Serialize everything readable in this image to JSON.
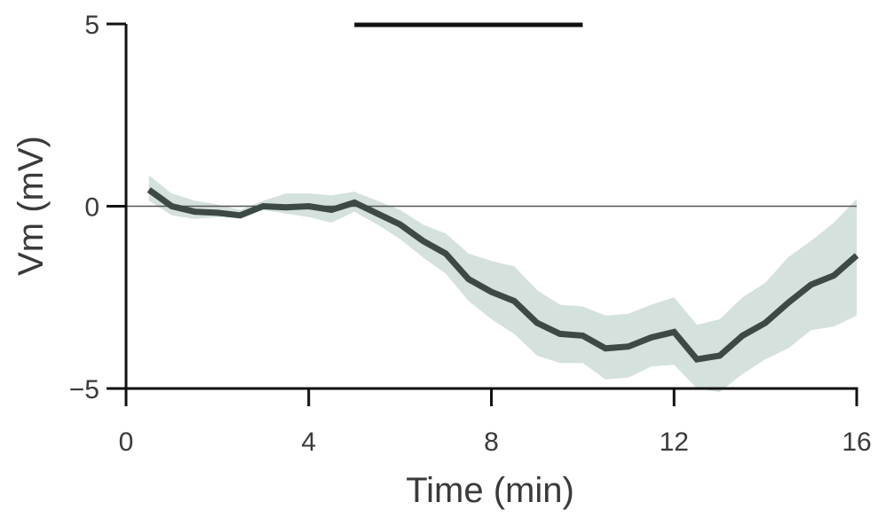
{
  "chart_data": {
    "type": "line",
    "xlabel": "Time (min)",
    "ylabel": "Vm (mV)",
    "xlim": [
      0,
      16
    ],
    "ylim": [
      -5,
      5
    ],
    "xticks": [
      0,
      4,
      8,
      12,
      16
    ],
    "xtick_labels": [
      "0",
      "4",
      "8",
      "12",
      "16"
    ],
    "yticks": [
      5,
      0,
      -5
    ],
    "ytick_labels": [
      "5",
      "0",
      "−5"
    ],
    "reference_line_y": 0,
    "stimulus_bar": {
      "x": [
        5,
        10
      ],
      "y": 5
    },
    "grid": false,
    "series": [
      {
        "x": [
          0.5,
          1.0,
          1.5,
          2.0,
          2.5,
          3.0,
          3.5,
          4.0,
          4.5,
          5.0,
          5.5,
          6.0,
          6.5,
          7.0,
          7.5,
          8.0,
          8.5,
          9.0,
          9.5,
          10.0,
          10.5,
          11.0,
          11.5,
          12.0,
          12.5,
          13.0,
          13.5,
          14.0,
          14.5,
          15.0,
          15.5,
          16.0
        ],
        "y": [
          0.45,
          0.0,
          -0.15,
          -0.18,
          -0.25,
          0.0,
          -0.03,
          0.0,
          -0.1,
          0.1,
          -0.2,
          -0.5,
          -0.95,
          -1.3,
          -2.0,
          -2.35,
          -2.6,
          -3.2,
          -3.5,
          -3.55,
          -3.9,
          -3.85,
          -3.6,
          -3.45,
          -4.2,
          -4.1,
          -3.55,
          -3.2,
          -2.65,
          -2.15,
          -1.9,
          -1.35
        ],
        "lower": [
          0.15,
          -0.25,
          -0.35,
          -0.3,
          -0.3,
          -0.1,
          -0.2,
          -0.3,
          -0.45,
          -0.15,
          -0.5,
          -0.9,
          -1.4,
          -1.85,
          -2.6,
          -3.1,
          -3.5,
          -4.1,
          -4.3,
          -4.3,
          -4.75,
          -4.7,
          -4.4,
          -4.35,
          -5.0,
          -5.1,
          -4.6,
          -4.2,
          -3.9,
          -3.4,
          -3.3,
          -3.0
        ],
        "upper": [
          0.85,
          0.35,
          0.15,
          0.05,
          -0.1,
          0.15,
          0.35,
          0.35,
          0.3,
          0.4,
          0.15,
          -0.1,
          -0.5,
          -0.75,
          -1.3,
          -1.5,
          -1.65,
          -2.3,
          -2.7,
          -2.75,
          -3.0,
          -2.95,
          -2.7,
          -2.5,
          -3.25,
          -3.1,
          -2.5,
          -2.1,
          -1.4,
          -0.95,
          -0.45,
          0.2
        ],
        "line_color": "#3d4945",
        "band_color": "#d5e1dc"
      }
    ],
    "colors": {
      "axis": "#111111",
      "zero_line": "#555555",
      "stimulus": "#111111",
      "text": "#3a3a3a"
    }
  }
}
